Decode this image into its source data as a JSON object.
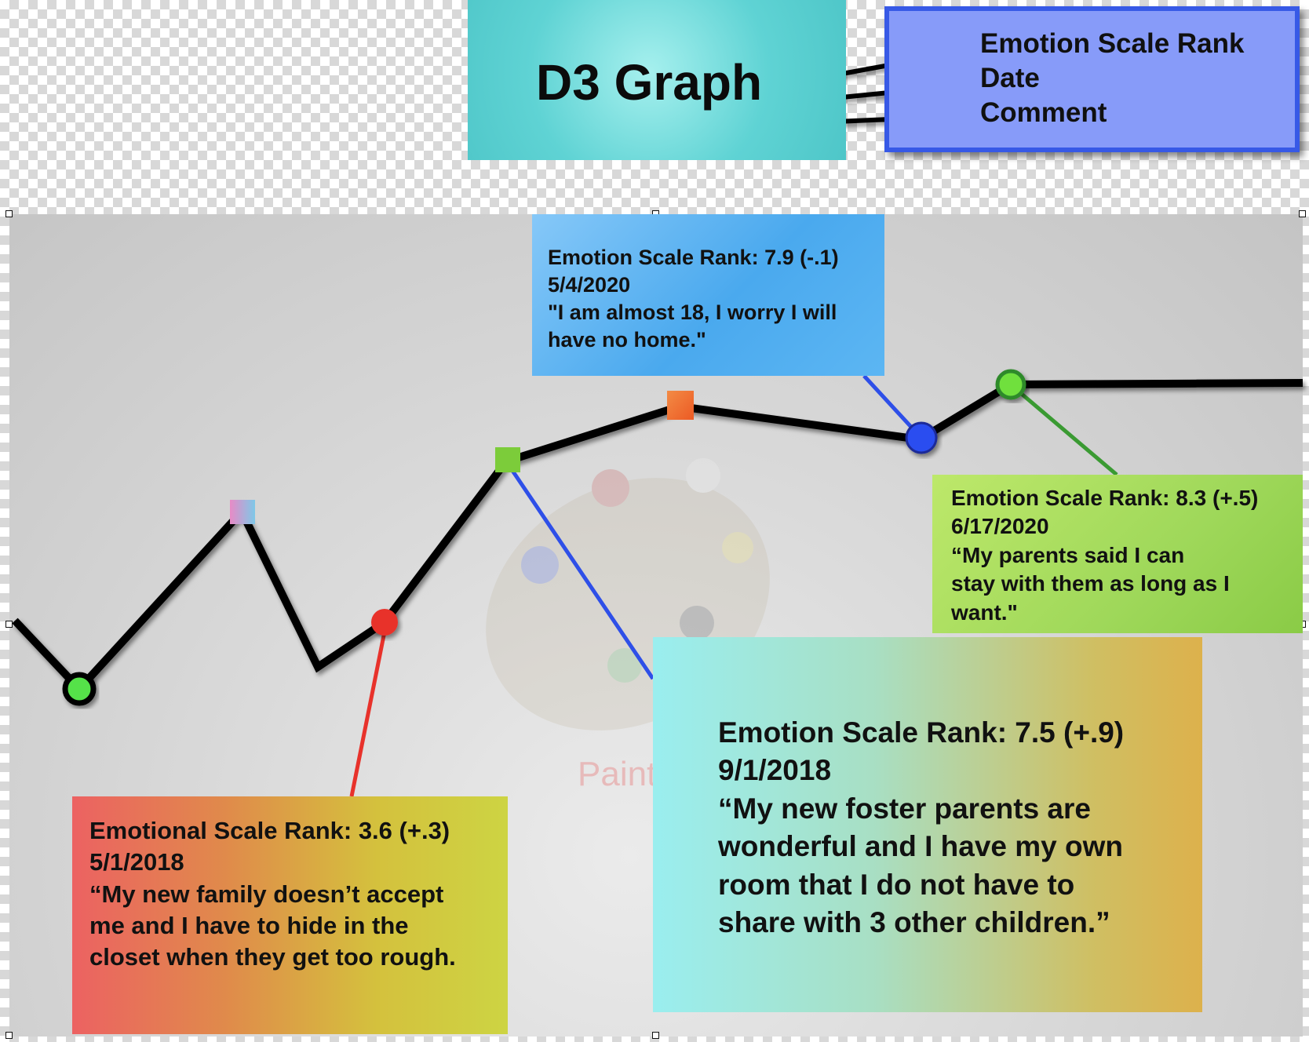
{
  "title": "D3 Graph",
  "legend": {
    "items": [
      "Emotion Scale Rank",
      "Date",
      "Comment"
    ]
  },
  "watermark": "Paint S",
  "notes": {
    "a": {
      "rank": "Emotion Scale Rank: 7.9 (-.1)",
      "date": "5/4/2020",
      "comment_line1": "\"I am almost 18, I worry I will",
      "comment_line2": "have no home.\""
    },
    "b": {
      "rank": "Emotion Scale Rank: 8.3 (+.5)",
      "date": "6/17/2020",
      "comment_line1": "“My parents said I can",
      "comment_line2": "stay with them as long as I",
      "comment_line3": "want.\""
    },
    "c": {
      "rank": "Emotion Scale Rank: 7.5 (+.9)",
      "date": "9/1/2018",
      "comment_line1": "“My new foster parents are",
      "comment_line2": "wonderful and I have my own",
      "comment_line3": "room that I do not have to",
      "comment_line4": "share with 3 other children.”"
    },
    "d": {
      "rank": "Emotional Scale Rank: 3.6 (+.3)",
      "date": "5/1/2018",
      "comment_line1": "“My new family doesn’t accept",
      "comment_line2": "me and I have to hide in the",
      "comment_line3": "closet when they get too rough."
    }
  },
  "colors": {
    "line": "#000000",
    "connector_red": "#e8322b",
    "connector_blue": "#2e4fe8",
    "connector_green": "#3a9a32"
  },
  "markers": [
    {
      "shape": "circle",
      "color": "#55e24a"
    },
    {
      "shape": "square",
      "color": "#c08fd0"
    },
    {
      "shape": "circle",
      "color": "#e8322b"
    },
    {
      "shape": "square",
      "color": "#7ccc3a"
    },
    {
      "shape": "square",
      "color": "#f07030"
    },
    {
      "shape": "circle",
      "color": "#2b4ef0"
    },
    {
      "shape": "circle",
      "color": "#6fe03e"
    }
  ]
}
